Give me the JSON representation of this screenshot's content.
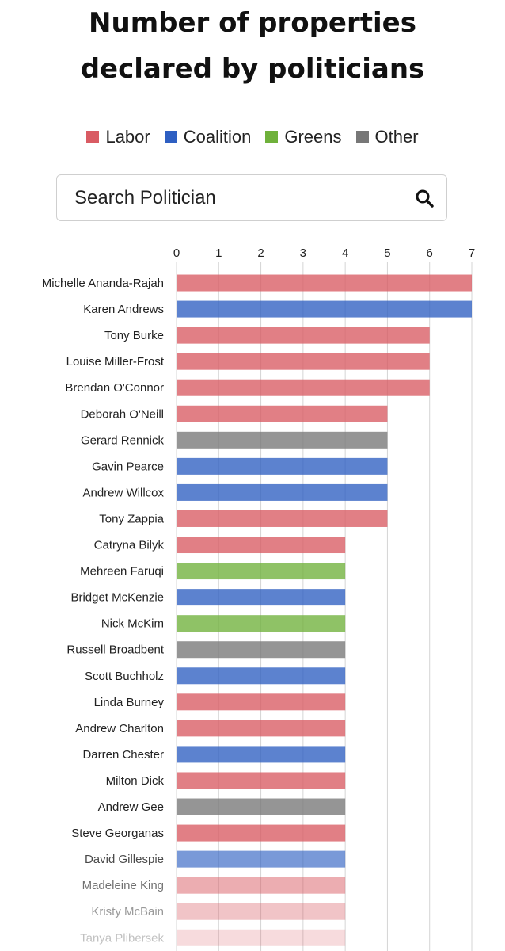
{
  "chart_data": {
    "type": "bar",
    "orientation": "horizontal",
    "title": [
      "Number of properties",
      "declared by politicians"
    ],
    "legend": [
      {
        "label": "Labor",
        "color": "#d95b63"
      },
      {
        "label": "Coalition",
        "color": "#2e5fc2"
      },
      {
        "label": "Greens",
        "color": "#6fb13b"
      },
      {
        "label": "Other",
        "color": "#777777"
      }
    ],
    "xlim": [
      0,
      7
    ],
    "x_ticks": [
      "0",
      "1",
      "2",
      "3",
      "4",
      "5",
      "6",
      "7"
    ],
    "grid": true,
    "bars": [
      {
        "name": "Michelle Ananda-Rajah",
        "value": 7,
        "party": "Labor"
      },
      {
        "name": "Karen Andrews",
        "value": 7,
        "party": "Coalition"
      },
      {
        "name": "Tony Burke",
        "value": 6,
        "party": "Labor"
      },
      {
        "name": "Louise Miller-Frost",
        "value": 6,
        "party": "Labor"
      },
      {
        "name": "Brendan O'Connor",
        "value": 6,
        "party": "Labor"
      },
      {
        "name": "Deborah O'Neill",
        "value": 5,
        "party": "Labor"
      },
      {
        "name": "Gerard Rennick",
        "value": 5,
        "party": "Other"
      },
      {
        "name": "Gavin Pearce",
        "value": 5,
        "party": "Coalition"
      },
      {
        "name": "Andrew Willcox",
        "value": 5,
        "party": "Coalition"
      },
      {
        "name": "Tony Zappia",
        "value": 5,
        "party": "Labor"
      },
      {
        "name": "Catryna Bilyk",
        "value": 4,
        "party": "Labor"
      },
      {
        "name": "Mehreen Faruqi",
        "value": 4,
        "party": "Greens"
      },
      {
        "name": "Bridget McKenzie",
        "value": 4,
        "party": "Coalition"
      },
      {
        "name": "Nick McKim",
        "value": 4,
        "party": "Greens"
      },
      {
        "name": "Russell Broadbent",
        "value": 4,
        "party": "Other"
      },
      {
        "name": "Scott Buchholz",
        "value": 4,
        "party": "Coalition"
      },
      {
        "name": "Linda Burney",
        "value": 4,
        "party": "Labor"
      },
      {
        "name": "Andrew Charlton",
        "value": 4,
        "party": "Labor"
      },
      {
        "name": "Darren Chester",
        "value": 4,
        "party": "Coalition"
      },
      {
        "name": "Milton Dick",
        "value": 4,
        "party": "Labor"
      },
      {
        "name": "Andrew Gee",
        "value": 4,
        "party": "Other"
      },
      {
        "name": "Steve Georganas",
        "value": 4,
        "party": "Labor"
      },
      {
        "name": "David Gillespie",
        "value": 4,
        "party": "Coalition"
      },
      {
        "name": "Madeleine King",
        "value": 4,
        "party": "Labor"
      },
      {
        "name": "Kristy McBain",
        "value": 4,
        "party": "Labor"
      },
      {
        "name": "Tanya Plibersek",
        "value": 4,
        "party": "Labor"
      }
    ]
  },
  "search": {
    "placeholder": "Search Politician",
    "icon": "magnifier-icon"
  }
}
